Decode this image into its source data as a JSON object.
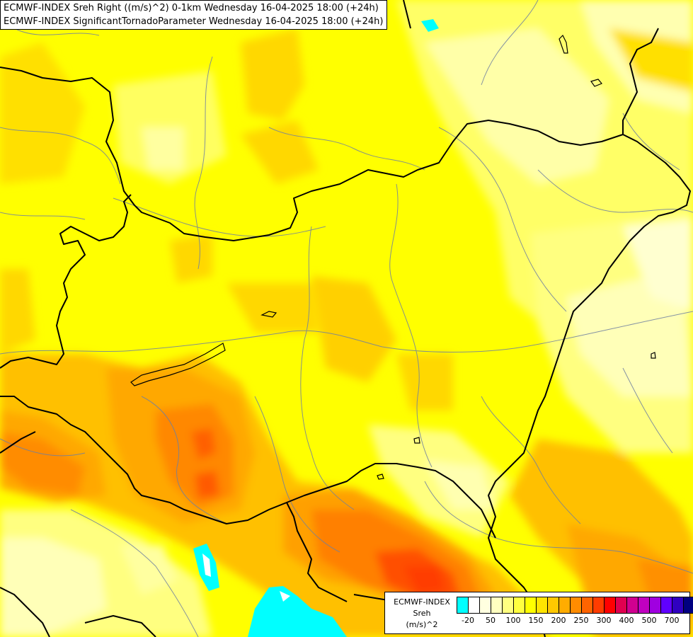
{
  "titles": {
    "line1": "ECMWF-INDEX Sreh Right ((m/s)^2) 0-1km Wednesday 16-04-2025 18:00 (+24h)",
    "line2": "ECMWF-INDEX SignificantTornadoParameter Wednesday 16-04-2025 18:00 (+24h)"
  },
  "legend": {
    "label_line1": "ECMWF-INDEX",
    "label_line2": "Sreh",
    "label_line3": "(m/s)^2",
    "colors": [
      "#00ffff",
      "#ffffff",
      "#ffffe0",
      "#ffffc0",
      "#ffff80",
      "#ffff40",
      "#ffff00",
      "#ffe400",
      "#ffc800",
      "#ffac00",
      "#ff8c00",
      "#ff6400",
      "#ff3c00",
      "#ff0000",
      "#e00050",
      "#d00090",
      "#c000c0",
      "#a000e0",
      "#6000ff",
      "#3000c0",
      "#000080"
    ],
    "ticks": [
      "-20",
      "50",
      "100",
      "150",
      "200",
      "250",
      "300",
      "400",
      "500",
      "700"
    ]
  }
}
